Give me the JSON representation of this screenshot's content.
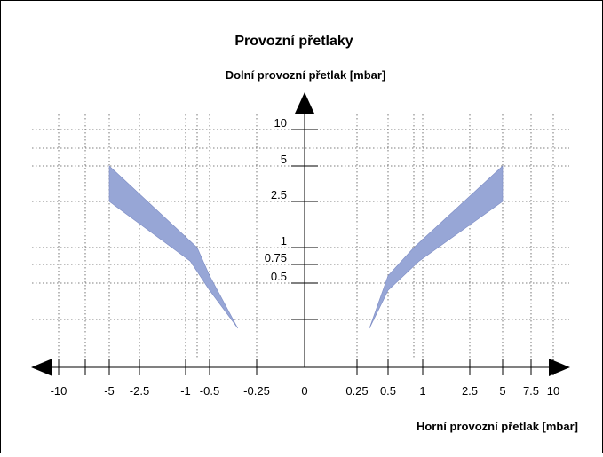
{
  "chart_data": {
    "type": "area",
    "title": "Provozní přetlaky",
    "ylabel": "Dolní provozní přetlak [mbar]",
    "xlabel": "Horní provozní přetlak [mbar]",
    "x_tick_labels": [
      "-10",
      "-5",
      "-2.5",
      "-1",
      "-0.5",
      "-0.25",
      "0",
      "0.25",
      "0.5",
      "1",
      "2.5",
      "5",
      "7.5",
      "10"
    ],
    "x_tick_values": [
      -10,
      -5,
      -2.5,
      -1,
      -0.5,
      -0.25,
      0,
      0.25,
      0.5,
      1,
      2.5,
      5,
      7.5,
      10
    ],
    "y_tick_labels": [
      "10",
      "5",
      "2.5",
      "1",
      "0.75",
      "0.5"
    ],
    "y_tick_values": [
      10,
      5,
      2.5,
      1,
      0.75,
      0.5
    ],
    "band_color": "#97A6D6",
    "grid": true,
    "series": [
      {
        "upper": [
          {
            "x": -5,
            "y": 5
          },
          {
            "x": -0.75,
            "y": 1
          },
          {
            "x": -0.5,
            "y": 0.6
          },
          {
            "x": -0.35,
            "y": 0.22
          }
        ],
        "lower": [
          {
            "x": -5,
            "y": 2.5
          },
          {
            "x": -0.9,
            "y": 0.8
          },
          {
            "x": -0.5,
            "y": 0.45
          },
          {
            "x": -0.35,
            "y": 0.22
          }
        ]
      },
      {
        "upper": [
          {
            "x": 5,
            "y": 5
          },
          {
            "x": 0.75,
            "y": 1
          },
          {
            "x": 0.5,
            "y": 0.6
          },
          {
            "x": 0.35,
            "y": 0.22
          }
        ],
        "lower": [
          {
            "x": 5,
            "y": 2.5
          },
          {
            "x": 0.9,
            "y": 0.8
          },
          {
            "x": 0.5,
            "y": 0.45
          },
          {
            "x": 0.35,
            "y": 0.22
          }
        ]
      }
    ]
  }
}
